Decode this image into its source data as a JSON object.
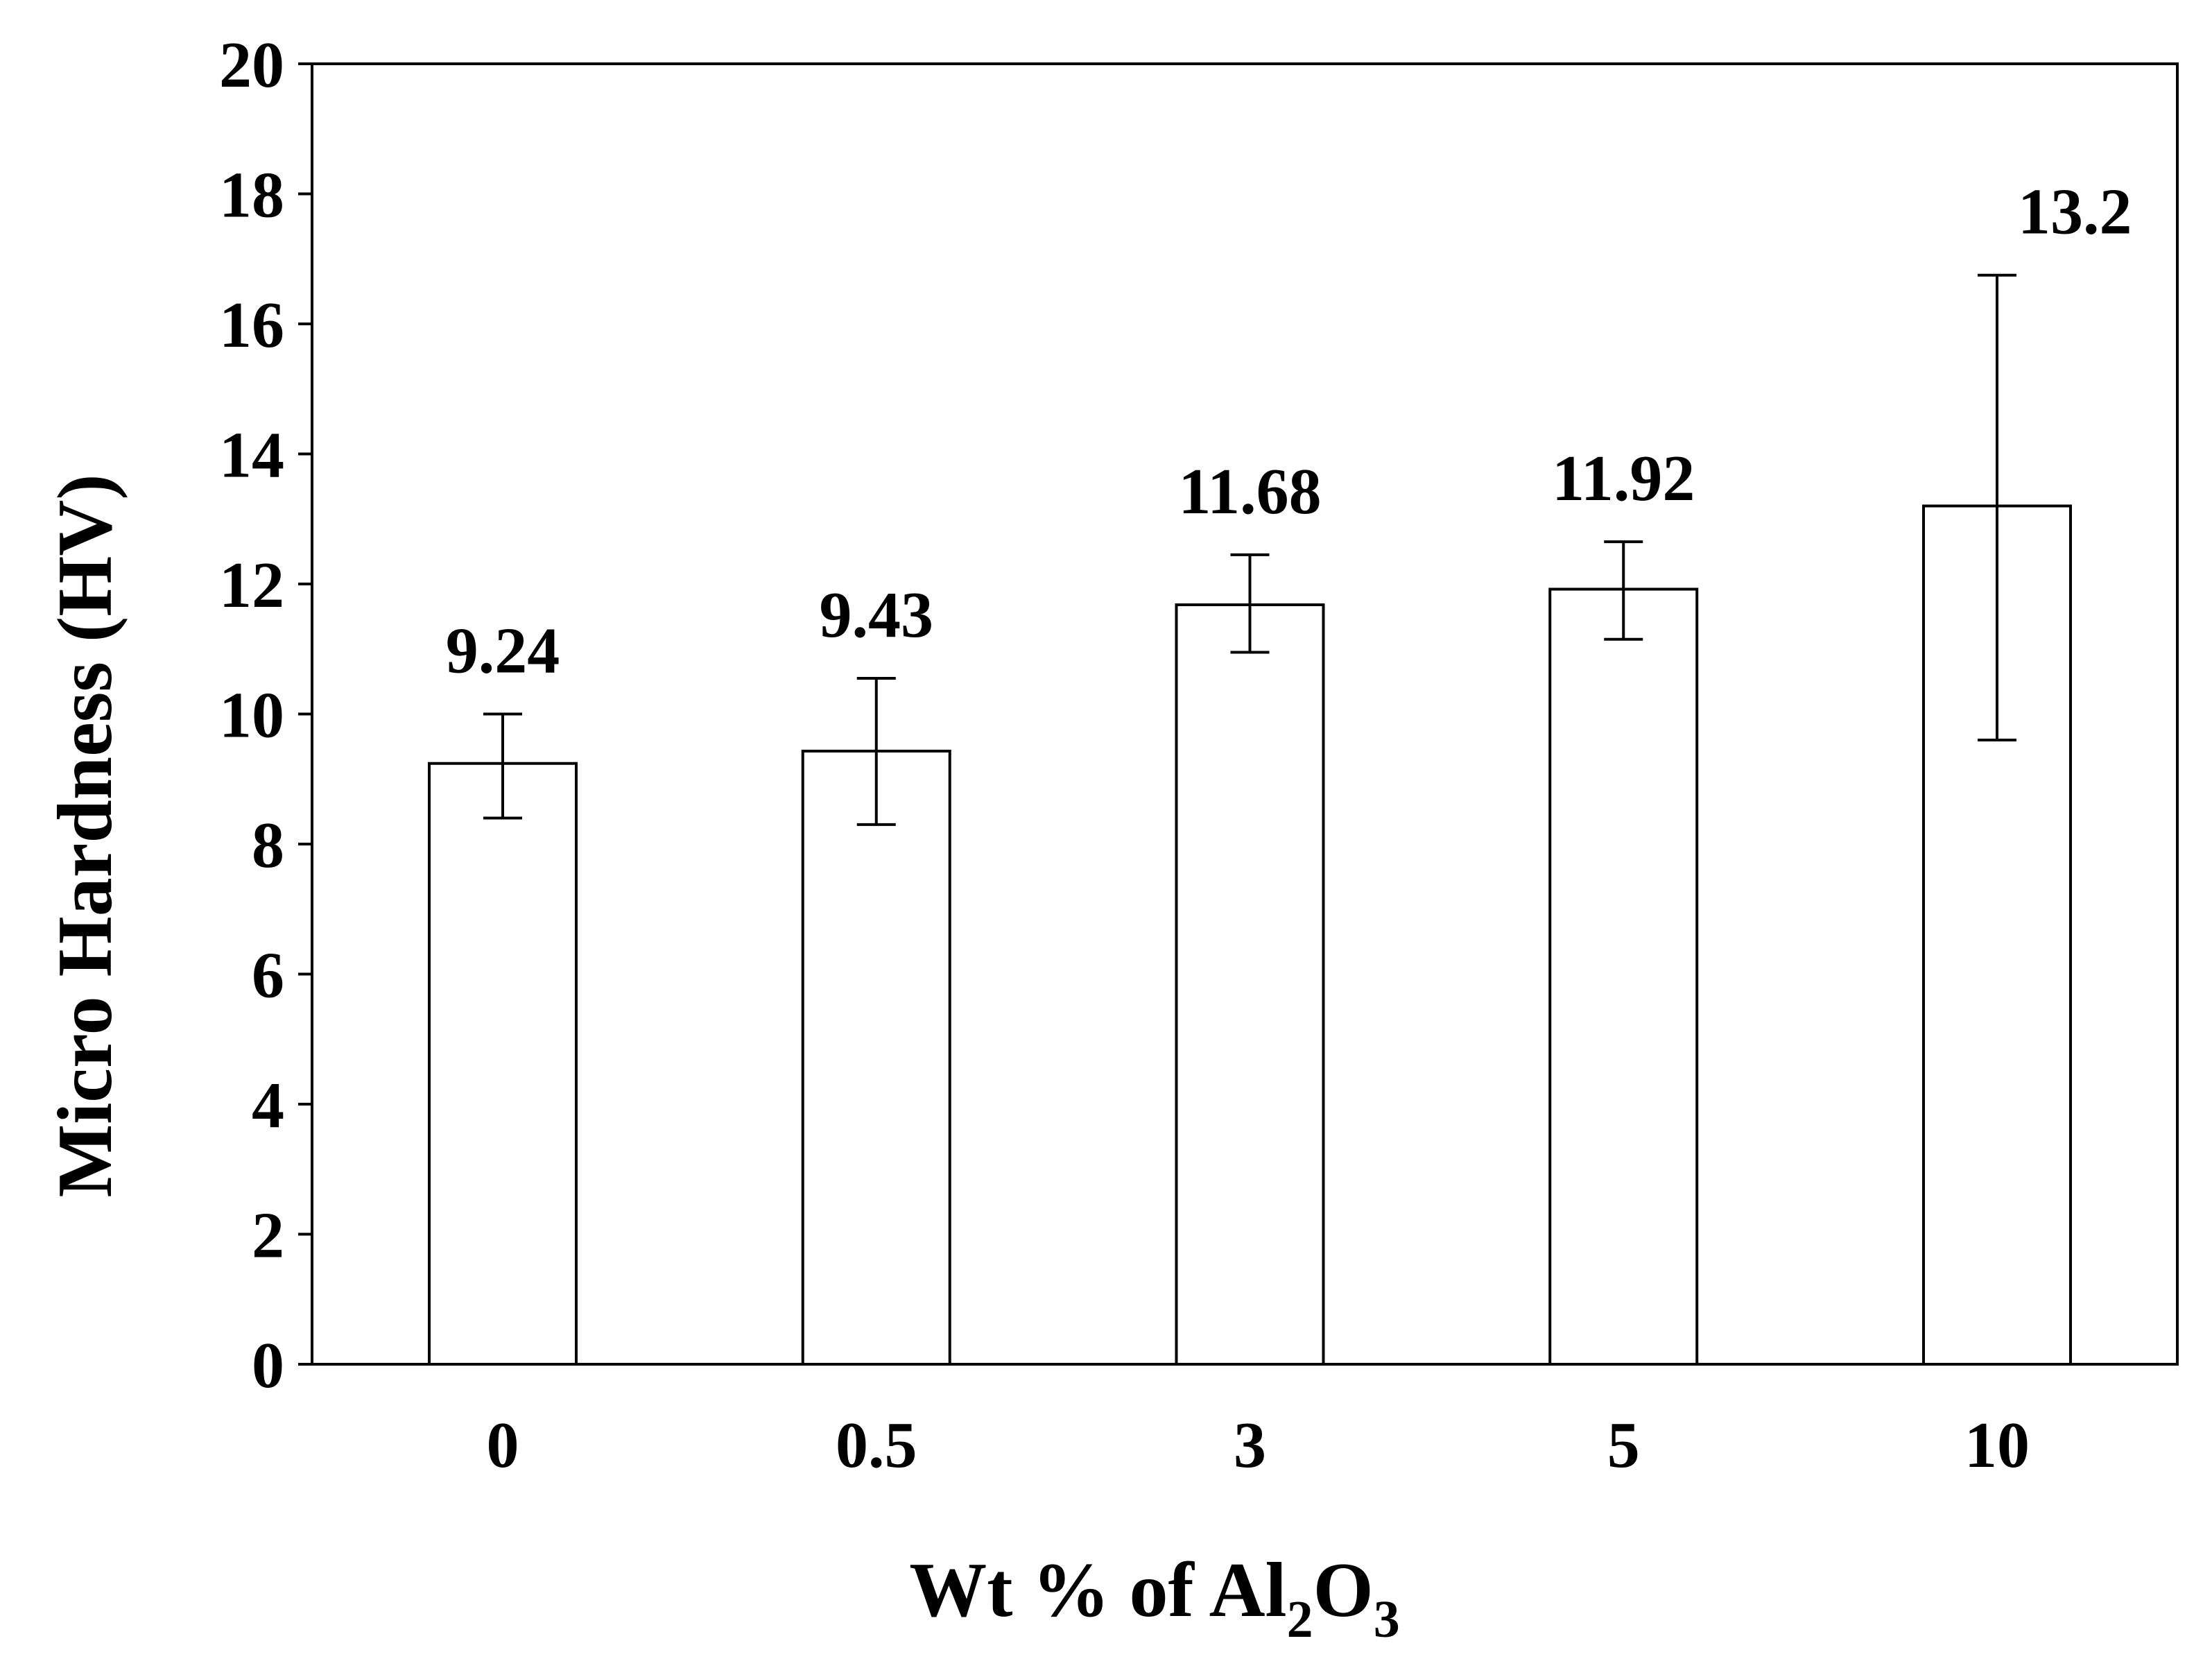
{
  "chart_data": {
    "type": "bar",
    "categories": [
      "0",
      "0.5",
      "3",
      "5",
      "10"
    ],
    "values": [
      9.24,
      9.43,
      11.68,
      11.92,
      13.2
    ],
    "value_labels": [
      "9.24",
      "9.43",
      "11.68",
      "11.92",
      "13.2"
    ],
    "error_low": [
      8.4,
      8.3,
      10.95,
      11.15,
      9.6
    ],
    "error_high": [
      10.0,
      10.55,
      12.45,
      12.65,
      16.75
    ],
    "ylim": [
      0,
      20
    ],
    "yticks": [
      0,
      2,
      4,
      6,
      8,
      10,
      12,
      14,
      16,
      18,
      20
    ],
    "ytick_labels": [
      "0",
      "2",
      "4",
      "6",
      "8",
      "10",
      "12",
      "14",
      "16",
      "18",
      "20"
    ],
    "ylabel": "Micro Hardness (HV)",
    "xlabel": {
      "prefix": "Wt % of Al",
      "sub1": "2",
      "mid": "O",
      "sub2": "3"
    },
    "grid": false,
    "colors": {
      "bar_fill": "#ffffff",
      "bar_stroke": "#000000"
    }
  }
}
